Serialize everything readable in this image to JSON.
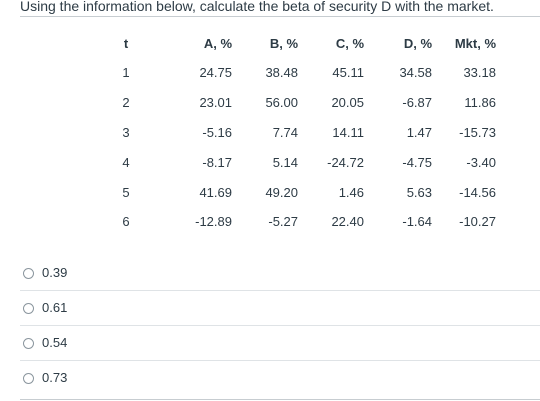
{
  "question": {
    "text": "Using the information below, calculate the beta of security D with the market."
  },
  "table": {
    "headers": [
      "t",
      "A, %",
      "B, %",
      "C, %",
      "D, %",
      "Mkt, %"
    ],
    "rows": [
      [
        "1",
        "24.75",
        "38.48",
        "45.11",
        "34.58",
        "33.18"
      ],
      [
        "2",
        "23.01",
        "56.00",
        "20.05",
        "-6.87",
        "11.86"
      ],
      [
        "3",
        "-5.16",
        "7.74",
        "14.11",
        "1.47",
        "-15.73"
      ],
      [
        "4",
        "-8.17",
        "5.14",
        "-24.72",
        "-4.75",
        "-3.40"
      ],
      [
        "5",
        "41.69",
        "49.20",
        "1.46",
        "5.63",
        "-14.56"
      ],
      [
        "6",
        "-12.89",
        "-5.27",
        "22.40",
        "-1.64",
        "-10.27"
      ]
    ]
  },
  "answers": [
    {
      "label": "0.39"
    },
    {
      "label": "0.61"
    },
    {
      "label": "0.54"
    },
    {
      "label": "0.73"
    }
  ]
}
